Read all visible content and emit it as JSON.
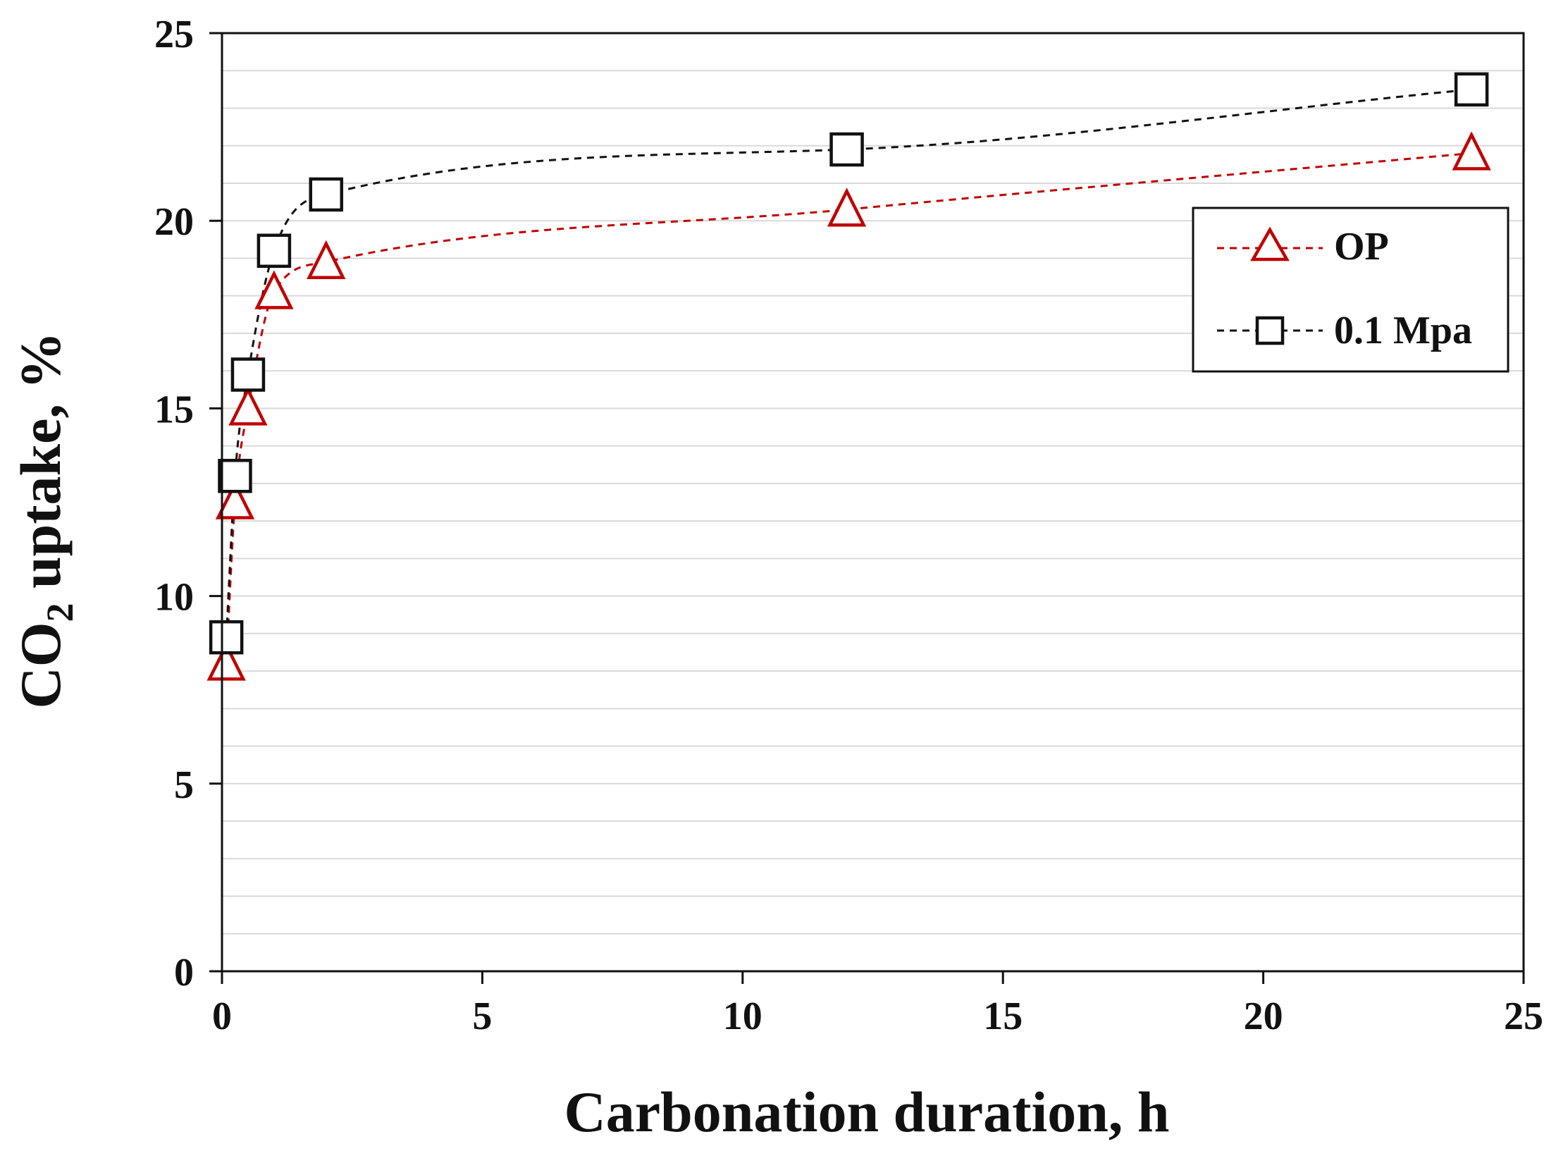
{
  "colors": {
    "op": "#c00000",
    "mpa": "#111111",
    "grid": "#d9d9d9",
    "axis": "#111111"
  },
  "chart_data": {
    "type": "line",
    "title": "",
    "xlabel": "Carbonation duration, h",
    "ylabel": {
      "prefix": "CO",
      "subscript": "2",
      "suffix": " uptake,  %"
    },
    "xlim": [
      0,
      25
    ],
    "ylim": [
      0,
      25
    ],
    "xticks": [
      0,
      5,
      10,
      15,
      20,
      25
    ],
    "yticks": [
      0,
      5,
      10,
      15,
      20,
      25
    ],
    "minor_grid_step": 1,
    "legend_position": "top-right",
    "series": [
      {
        "name": "OP",
        "marker": "triangle",
        "color": "#c00000",
        "line_style": "dashed",
        "x": [
          0.083,
          0.25,
          0.5,
          1,
          2,
          12,
          24
        ],
        "y": [
          8.2,
          12.5,
          15.0,
          18.1,
          18.9,
          20.3,
          21.8
        ]
      },
      {
        "name": "0.1 Mpa",
        "marker": "square",
        "color": "#111111",
        "line_style": "dashed",
        "x": [
          0.083,
          0.25,
          0.5,
          1,
          2,
          12,
          24
        ],
        "y": [
          8.9,
          13.2,
          15.9,
          19.2,
          20.7,
          21.9,
          23.5
        ]
      }
    ]
  }
}
